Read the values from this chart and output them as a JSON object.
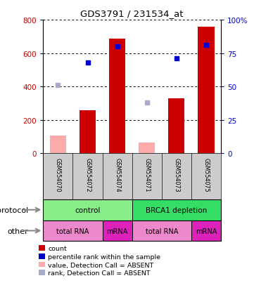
{
  "title": "GDS3791 / 231534_at",
  "samples": [
    "GSM554070",
    "GSM554072",
    "GSM554074",
    "GSM554071",
    "GSM554073",
    "GSM554075"
  ],
  "counts": [
    0,
    260,
    685,
    0,
    330,
    760
  ],
  "absent_values": [
    105,
    0,
    0,
    65,
    0,
    0
  ],
  "percentile_ranks_pct": [
    0,
    68,
    80,
    0,
    71,
    81
  ],
  "absent_ranks_pct": [
    51,
    0,
    0,
    38,
    0,
    0
  ],
  "ylim_left": [
    0,
    800
  ],
  "ylim_right": [
    0,
    100
  ],
  "yticks_left": [
    0,
    200,
    400,
    600,
    800
  ],
  "yticks_right": [
    0,
    25,
    50,
    75,
    100
  ],
  "bar_color_red": "#cc0000",
  "bar_color_pink": "#ffaaaa",
  "dot_color_blue": "#0000cc",
  "dot_color_lightblue": "#aaaacc",
  "protocol_groups": [
    {
      "label": "control",
      "start": 0,
      "end": 3,
      "color": "#88ee88"
    },
    {
      "label": "BRCA1 depletion",
      "start": 3,
      "end": 6,
      "color": "#33dd66"
    }
  ],
  "other_groups": [
    {
      "label": "total RNA",
      "start": 0,
      "end": 2,
      "color": "#ee88cc"
    },
    {
      "label": "mRNA",
      "start": 2,
      "end": 3,
      "color": "#dd22bb"
    },
    {
      "label": "total RNA",
      "start": 3,
      "end": 5,
      "color": "#ee88cc"
    },
    {
      "label": "mRNA",
      "start": 5,
      "end": 6,
      "color": "#dd22bb"
    }
  ],
  "left_label_color": "#cc0000",
  "right_label_color": "#0000cc",
  "protocol_label": "protocol",
  "other_label": "other",
  "legend_items": [
    {
      "label": "count",
      "color": "#cc0000"
    },
    {
      "label": "percentile rank within the sample",
      "color": "#0000cc"
    },
    {
      "label": "value, Detection Call = ABSENT",
      "color": "#ffaaaa"
    },
    {
      "label": "rank, Detection Call = ABSENT",
      "color": "#aaaacc"
    }
  ],
  "bg_color": "#cccccc",
  "plot_bg": "#ffffff",
  "bar_width": 0.55
}
